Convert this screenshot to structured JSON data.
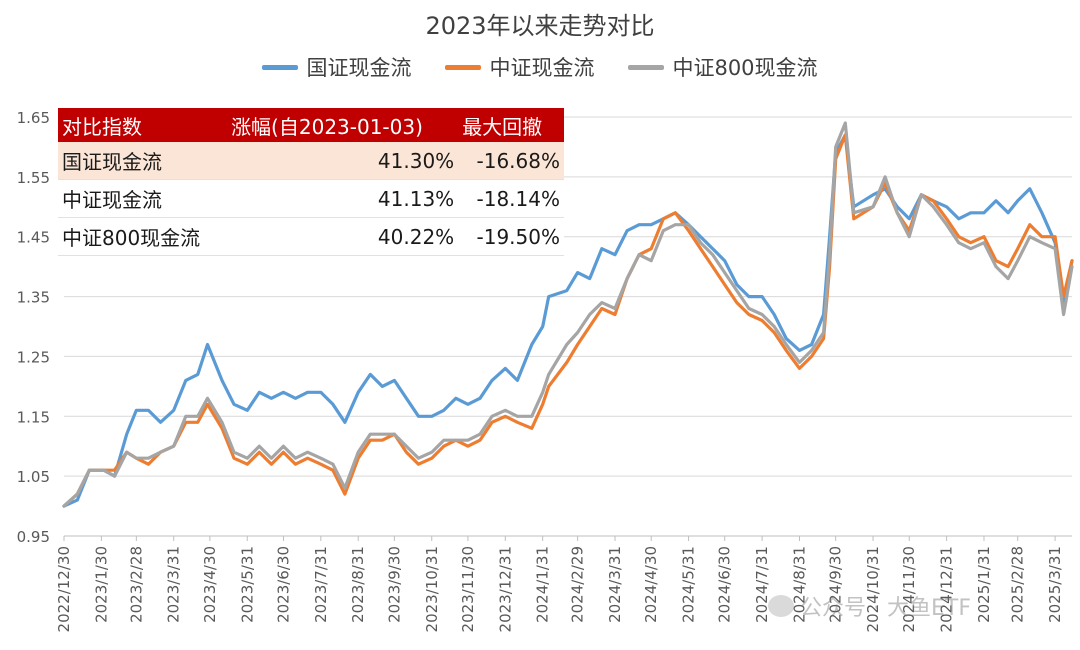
{
  "chart_data": {
    "type": "line",
    "title": "2023年以来走势对比",
    "ylim": [
      0.95,
      1.65
    ],
    "yticks": [
      "0.95",
      "1.05",
      "1.15",
      "1.25",
      "1.35",
      "1.45",
      "1.55",
      "1.65"
    ],
    "xlim": [
      "2022-12-30",
      "2025-04-14"
    ],
    "xticks": [
      "2022/12/30",
      "2023/1/30",
      "2023/2/28",
      "2023/3/31",
      "2023/4/30",
      "2023/5/31",
      "2023/6/30",
      "2023/7/31",
      "2023/8/31",
      "2023/9/30",
      "2023/10/31",
      "2023/11/30",
      "2023/12/31",
      "2024/1/31",
      "2024/2/29",
      "2024/3/31",
      "2024/4/30",
      "2024/5/31",
      "2024/6/30",
      "2024/7/31",
      "2024/8/31",
      "2024/9/30",
      "2024/10/31",
      "2024/11/30",
      "2024/12/31",
      "2025/1/31",
      "2025/2/28",
      "2025/3/31"
    ],
    "grid": "horizontal",
    "legend_position": "top",
    "series": [
      {
        "name": "国证现金流",
        "color": "#5b9bd5",
        "points": [
          [
            "2022-12-30",
            1.0
          ],
          [
            "2023-01-10",
            1.01
          ],
          [
            "2023-01-20",
            1.06
          ],
          [
            "2023-02-01",
            1.06
          ],
          [
            "2023-02-10",
            1.05
          ],
          [
            "2023-02-20",
            1.12
          ],
          [
            "2023-02-28",
            1.16
          ],
          [
            "2023-03-10",
            1.16
          ],
          [
            "2023-03-20",
            1.14
          ],
          [
            "2023-03-31",
            1.16
          ],
          [
            "2023-04-10",
            1.21
          ],
          [
            "2023-04-20",
            1.22
          ],
          [
            "2023-04-28",
            1.27
          ],
          [
            "2023-05-10",
            1.21
          ],
          [
            "2023-05-20",
            1.17
          ],
          [
            "2023-05-31",
            1.16
          ],
          [
            "2023-06-10",
            1.19
          ],
          [
            "2023-06-20",
            1.18
          ],
          [
            "2023-06-30",
            1.19
          ],
          [
            "2023-07-10",
            1.18
          ],
          [
            "2023-07-20",
            1.19
          ],
          [
            "2023-07-31",
            1.19
          ],
          [
            "2023-08-10",
            1.17
          ],
          [
            "2023-08-20",
            1.14
          ],
          [
            "2023-08-31",
            1.19
          ],
          [
            "2023-09-10",
            1.22
          ],
          [
            "2023-09-20",
            1.2
          ],
          [
            "2023-09-30",
            1.21
          ],
          [
            "2023-10-10",
            1.18
          ],
          [
            "2023-10-20",
            1.15
          ],
          [
            "2023-10-31",
            1.15
          ],
          [
            "2023-11-10",
            1.16
          ],
          [
            "2023-11-20",
            1.18
          ],
          [
            "2023-11-30",
            1.17
          ],
          [
            "2023-12-10",
            1.18
          ],
          [
            "2023-12-20",
            1.21
          ],
          [
            "2023-12-31",
            1.23
          ],
          [
            "2024-01-10",
            1.21
          ],
          [
            "2024-01-22",
            1.27
          ],
          [
            "2024-01-31",
            1.3
          ],
          [
            "2024-02-05",
            1.35
          ],
          [
            "2024-02-20",
            1.36
          ],
          [
            "2024-02-29",
            1.39
          ],
          [
            "2024-03-10",
            1.38
          ],
          [
            "2024-03-20",
            1.43
          ],
          [
            "2024-03-31",
            1.42
          ],
          [
            "2024-04-10",
            1.46
          ],
          [
            "2024-04-20",
            1.47
          ],
          [
            "2024-04-30",
            1.47
          ],
          [
            "2024-05-10",
            1.48
          ],
          [
            "2024-05-20",
            1.49
          ],
          [
            "2024-05-31",
            1.47
          ],
          [
            "2024-06-10",
            1.45
          ],
          [
            "2024-06-20",
            1.43
          ],
          [
            "2024-06-30",
            1.41
          ],
          [
            "2024-07-10",
            1.37
          ],
          [
            "2024-07-20",
            1.35
          ],
          [
            "2024-07-31",
            1.35
          ],
          [
            "2024-08-10",
            1.32
          ],
          [
            "2024-08-20",
            1.28
          ],
          [
            "2024-08-31",
            1.26
          ],
          [
            "2024-09-10",
            1.27
          ],
          [
            "2024-09-20",
            1.32
          ],
          [
            "2024-09-25",
            1.45
          ],
          [
            "2024-09-30",
            1.59
          ],
          [
            "2024-10-08",
            1.62
          ],
          [
            "2024-10-15",
            1.5
          ],
          [
            "2024-10-31",
            1.52
          ],
          [
            "2024-11-10",
            1.53
          ],
          [
            "2024-11-20",
            1.5
          ],
          [
            "2024-11-30",
            1.48
          ],
          [
            "2024-12-10",
            1.52
          ],
          [
            "2024-12-20",
            1.51
          ],
          [
            "2024-12-31",
            1.5
          ],
          [
            "2025-01-10",
            1.48
          ],
          [
            "2025-01-20",
            1.49
          ],
          [
            "2025-01-31",
            1.49
          ],
          [
            "2025-02-10",
            1.51
          ],
          [
            "2025-02-20",
            1.49
          ],
          [
            "2025-02-28",
            1.51
          ],
          [
            "2025-03-10",
            1.53
          ],
          [
            "2025-03-20",
            1.49
          ],
          [
            "2025-03-31",
            1.44
          ],
          [
            "2025-04-07",
            1.34
          ],
          [
            "2025-04-14",
            1.41
          ]
        ]
      },
      {
        "name": "中证现金流",
        "color": "#ed7d31",
        "points": [
          [
            "2022-12-30",
            1.0
          ],
          [
            "2023-01-10",
            1.02
          ],
          [
            "2023-01-20",
            1.06
          ],
          [
            "2023-02-01",
            1.06
          ],
          [
            "2023-02-10",
            1.06
          ],
          [
            "2023-02-20",
            1.09
          ],
          [
            "2023-02-28",
            1.08
          ],
          [
            "2023-03-10",
            1.07
          ],
          [
            "2023-03-20",
            1.09
          ],
          [
            "2023-03-31",
            1.1
          ],
          [
            "2023-04-10",
            1.14
          ],
          [
            "2023-04-20",
            1.14
          ],
          [
            "2023-04-28",
            1.17
          ],
          [
            "2023-05-10",
            1.13
          ],
          [
            "2023-05-20",
            1.08
          ],
          [
            "2023-05-31",
            1.07
          ],
          [
            "2023-06-10",
            1.09
          ],
          [
            "2023-06-20",
            1.07
          ],
          [
            "2023-06-30",
            1.09
          ],
          [
            "2023-07-10",
            1.07
          ],
          [
            "2023-07-20",
            1.08
          ],
          [
            "2023-07-31",
            1.07
          ],
          [
            "2023-08-10",
            1.06
          ],
          [
            "2023-08-20",
            1.02
          ],
          [
            "2023-08-31",
            1.08
          ],
          [
            "2023-09-10",
            1.11
          ],
          [
            "2023-09-20",
            1.11
          ],
          [
            "2023-09-30",
            1.12
          ],
          [
            "2023-10-10",
            1.09
          ],
          [
            "2023-10-20",
            1.07
          ],
          [
            "2023-10-31",
            1.08
          ],
          [
            "2023-11-10",
            1.1
          ],
          [
            "2023-11-20",
            1.11
          ],
          [
            "2023-11-30",
            1.1
          ],
          [
            "2023-12-10",
            1.11
          ],
          [
            "2023-12-20",
            1.14
          ],
          [
            "2023-12-31",
            1.15
          ],
          [
            "2024-01-10",
            1.14
          ],
          [
            "2024-01-22",
            1.13
          ],
          [
            "2024-01-31",
            1.17
          ],
          [
            "2024-02-05",
            1.2
          ],
          [
            "2024-02-20",
            1.24
          ],
          [
            "2024-02-29",
            1.27
          ],
          [
            "2024-03-10",
            1.3
          ],
          [
            "2024-03-20",
            1.33
          ],
          [
            "2024-03-31",
            1.32
          ],
          [
            "2024-04-10",
            1.38
          ],
          [
            "2024-04-20",
            1.42
          ],
          [
            "2024-04-30",
            1.43
          ],
          [
            "2024-05-10",
            1.48
          ],
          [
            "2024-05-20",
            1.49
          ],
          [
            "2024-05-31",
            1.46
          ],
          [
            "2024-06-10",
            1.43
          ],
          [
            "2024-06-20",
            1.4
          ],
          [
            "2024-06-30",
            1.37
          ],
          [
            "2024-07-10",
            1.34
          ],
          [
            "2024-07-20",
            1.32
          ],
          [
            "2024-07-31",
            1.31
          ],
          [
            "2024-08-10",
            1.29
          ],
          [
            "2024-08-20",
            1.26
          ],
          [
            "2024-08-31",
            1.23
          ],
          [
            "2024-09-10",
            1.25
          ],
          [
            "2024-09-20",
            1.28
          ],
          [
            "2024-09-25",
            1.4
          ],
          [
            "2024-09-30",
            1.58
          ],
          [
            "2024-10-08",
            1.62
          ],
          [
            "2024-10-15",
            1.48
          ],
          [
            "2024-10-31",
            1.5
          ],
          [
            "2024-11-10",
            1.54
          ],
          [
            "2024-11-20",
            1.49
          ],
          [
            "2024-11-30",
            1.46
          ],
          [
            "2024-12-10",
            1.52
          ],
          [
            "2024-12-20",
            1.51
          ],
          [
            "2024-12-31",
            1.48
          ],
          [
            "2025-01-10",
            1.45
          ],
          [
            "2025-01-20",
            1.44
          ],
          [
            "2025-01-31",
            1.45
          ],
          [
            "2025-02-10",
            1.41
          ],
          [
            "2025-02-20",
            1.4
          ],
          [
            "2025-02-28",
            1.43
          ],
          [
            "2025-03-10",
            1.47
          ],
          [
            "2025-03-20",
            1.45
          ],
          [
            "2025-03-31",
            1.45
          ],
          [
            "2025-04-07",
            1.35
          ],
          [
            "2025-04-14",
            1.41
          ]
        ]
      },
      {
        "name": "中证800现金流",
        "color": "#a5a5a5",
        "points": [
          [
            "2022-12-30",
            1.0
          ],
          [
            "2023-01-10",
            1.02
          ],
          [
            "2023-01-20",
            1.06
          ],
          [
            "2023-02-01",
            1.06
          ],
          [
            "2023-02-10",
            1.05
          ],
          [
            "2023-02-20",
            1.09
          ],
          [
            "2023-02-28",
            1.08
          ],
          [
            "2023-03-10",
            1.08
          ],
          [
            "2023-03-20",
            1.09
          ],
          [
            "2023-03-31",
            1.1
          ],
          [
            "2023-04-10",
            1.15
          ],
          [
            "2023-04-20",
            1.15
          ],
          [
            "2023-04-28",
            1.18
          ],
          [
            "2023-05-10",
            1.14
          ],
          [
            "2023-05-20",
            1.09
          ],
          [
            "2023-05-31",
            1.08
          ],
          [
            "2023-06-10",
            1.1
          ],
          [
            "2023-06-20",
            1.08
          ],
          [
            "2023-06-30",
            1.1
          ],
          [
            "2023-07-10",
            1.08
          ],
          [
            "2023-07-20",
            1.09
          ],
          [
            "2023-07-31",
            1.08
          ],
          [
            "2023-08-10",
            1.07
          ],
          [
            "2023-08-20",
            1.03
          ],
          [
            "2023-08-31",
            1.09
          ],
          [
            "2023-09-10",
            1.12
          ],
          [
            "2023-09-20",
            1.12
          ],
          [
            "2023-09-30",
            1.12
          ],
          [
            "2023-10-10",
            1.1
          ],
          [
            "2023-10-20",
            1.08
          ],
          [
            "2023-10-31",
            1.09
          ],
          [
            "2023-11-10",
            1.11
          ],
          [
            "2023-11-20",
            1.11
          ],
          [
            "2023-11-30",
            1.11
          ],
          [
            "2023-12-10",
            1.12
          ],
          [
            "2023-12-20",
            1.15
          ],
          [
            "2023-12-31",
            1.16
          ],
          [
            "2024-01-10",
            1.15
          ],
          [
            "2024-01-22",
            1.15
          ],
          [
            "2024-01-31",
            1.19
          ],
          [
            "2024-02-05",
            1.22
          ],
          [
            "2024-02-20",
            1.27
          ],
          [
            "2024-02-29",
            1.29
          ],
          [
            "2024-03-10",
            1.32
          ],
          [
            "2024-03-20",
            1.34
          ],
          [
            "2024-03-31",
            1.33
          ],
          [
            "2024-04-10",
            1.38
          ],
          [
            "2024-04-20",
            1.42
          ],
          [
            "2024-04-30",
            1.41
          ],
          [
            "2024-05-10",
            1.46
          ],
          [
            "2024-05-20",
            1.47
          ],
          [
            "2024-05-31",
            1.47
          ],
          [
            "2024-06-10",
            1.44
          ],
          [
            "2024-06-20",
            1.42
          ],
          [
            "2024-06-30",
            1.39
          ],
          [
            "2024-07-10",
            1.36
          ],
          [
            "2024-07-20",
            1.33
          ],
          [
            "2024-07-31",
            1.32
          ],
          [
            "2024-08-10",
            1.3
          ],
          [
            "2024-08-20",
            1.27
          ],
          [
            "2024-08-31",
            1.24
          ],
          [
            "2024-09-10",
            1.26
          ],
          [
            "2024-09-20",
            1.29
          ],
          [
            "2024-09-25",
            1.42
          ],
          [
            "2024-09-30",
            1.6
          ],
          [
            "2024-10-08",
            1.64
          ],
          [
            "2024-10-15",
            1.49
          ],
          [
            "2024-10-31",
            1.5
          ],
          [
            "2024-11-10",
            1.55
          ],
          [
            "2024-11-20",
            1.49
          ],
          [
            "2024-11-30",
            1.45
          ],
          [
            "2024-12-10",
            1.52
          ],
          [
            "2024-12-20",
            1.5
          ],
          [
            "2024-12-31",
            1.47
          ],
          [
            "2025-01-10",
            1.44
          ],
          [
            "2025-01-20",
            1.43
          ],
          [
            "2025-01-31",
            1.44
          ],
          [
            "2025-02-10",
            1.4
          ],
          [
            "2025-02-20",
            1.38
          ],
          [
            "2025-02-28",
            1.41
          ],
          [
            "2025-03-10",
            1.45
          ],
          [
            "2025-03-20",
            1.44
          ],
          [
            "2025-03-31",
            1.43
          ],
          [
            "2025-04-07",
            1.32
          ],
          [
            "2025-04-14",
            1.4
          ]
        ]
      }
    ]
  },
  "stats_table": {
    "headers": [
      "对比指数",
      "涨幅(自2023-01-03)",
      "最大回撤"
    ],
    "rows": [
      {
        "name": "国证现金流",
        "gain": "41.30%",
        "drawdown": "-16.68%"
      },
      {
        "name": "中证现金流",
        "gain": "41.13%",
        "drawdown": "-18.14%"
      },
      {
        "name": "中证800现金流",
        "gain": "40.22%",
        "drawdown": "-19.50%"
      }
    ]
  },
  "watermark": {
    "text": "公众号 · 大鱼ETF",
    "icon": "wechat-icon"
  }
}
